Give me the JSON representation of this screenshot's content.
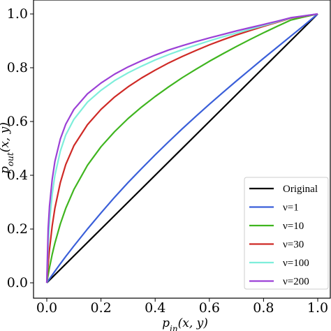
{
  "chart_data": {
    "type": "line",
    "xlabel_main": "p",
    "xlabel_sub": "in",
    "xlabel_args": "(x, y)",
    "ylabel_main": "p",
    "ylabel_sub": "out",
    "ylabel_args": "(x, y)",
    "xlim": [
      0.0,
      1.0
    ],
    "ylim": [
      0.0,
      1.0
    ],
    "x_ticks": [
      "0.0",
      "0.2",
      "0.4",
      "0.6",
      "0.8",
      "1.0"
    ],
    "y_ticks": [
      "0.0",
      "0.2",
      "0.4",
      "0.6",
      "0.8",
      "1.0"
    ],
    "grid": false,
    "legend_position": "bottom-right",
    "x": [
      0,
      0.005,
      0.01,
      0.02,
      0.03,
      0.05,
      0.07,
      0.1,
      0.15,
      0.2,
      0.25,
      0.3,
      0.35,
      0.4,
      0.45,
      0.5,
      0.55,
      0.6,
      0.65,
      0.7,
      0.75,
      0.8,
      0.85,
      0.9,
      0.95,
      1.0
    ],
    "series": [
      {
        "name": "Original",
        "color": "#000000",
        "values": [
          0,
          0.005,
          0.01,
          0.02,
          0.03,
          0.05,
          0.07,
          0.1,
          0.15,
          0.2,
          0.25,
          0.3,
          0.35,
          0.4,
          0.45,
          0.5,
          0.55,
          0.6,
          0.65,
          0.7,
          0.75,
          0.8,
          0.85,
          0.9,
          0.95,
          1.0
        ]
      },
      {
        "name": "ν=1",
        "color": "#3a5fd9",
        "values": [
          0,
          0.0073,
          0.0146,
          0.029,
          0.043,
          0.071,
          0.098,
          0.137,
          0.2,
          0.26,
          0.318,
          0.373,
          0.425,
          0.476,
          0.525,
          0.573,
          0.619,
          0.664,
          0.708,
          0.751,
          0.793,
          0.835,
          0.876,
          0.917,
          0.958,
          1.0
        ]
      },
      {
        "name": "ν=10",
        "color": "#3fb51f",
        "values": [
          0,
          0.0295,
          0.057,
          0.106,
          0.148,
          0.219,
          0.277,
          0.347,
          0.437,
          0.506,
          0.562,
          0.611,
          0.654,
          0.693,
          0.729,
          0.763,
          0.794,
          0.824,
          0.852,
          0.879,
          0.905,
          0.93,
          0.954,
          0.977,
          0.989,
          1.0
        ]
      },
      {
        "name": "ν=30",
        "color": "#cf2a26",
        "values": [
          0,
          0.068,
          0.124,
          0.212,
          0.278,
          0.373,
          0.44,
          0.51,
          0.588,
          0.645,
          0.691,
          0.729,
          0.762,
          0.791,
          0.818,
          0.842,
          0.864,
          0.885,
          0.904,
          0.922,
          0.938,
          0.954,
          0.969,
          0.984,
          0.992,
          1.0
        ]
      },
      {
        "name": "ν=100",
        "color": "#7eeedb",
        "values": [
          0,
          0.14,
          0.225,
          0.33,
          0.4,
          0.49,
          0.55,
          0.608,
          0.672,
          0.716,
          0.752,
          0.781,
          0.806,
          0.829,
          0.849,
          0.867,
          0.884,
          0.9,
          0.915,
          0.929,
          0.943,
          0.957,
          0.971,
          0.985,
          0.993,
          1.0
        ]
      },
      {
        "name": "ν=200",
        "color": "#9b40d6",
        "values": [
          0,
          0.2,
          0.285,
          0.385,
          0.452,
          0.535,
          0.59,
          0.645,
          0.703,
          0.743,
          0.776,
          0.803,
          0.826,
          0.847,
          0.866,
          0.882,
          0.897,
          0.911,
          0.924,
          0.937,
          0.949,
          0.961,
          0.973,
          0.986,
          0.993,
          1.0
        ]
      }
    ]
  }
}
